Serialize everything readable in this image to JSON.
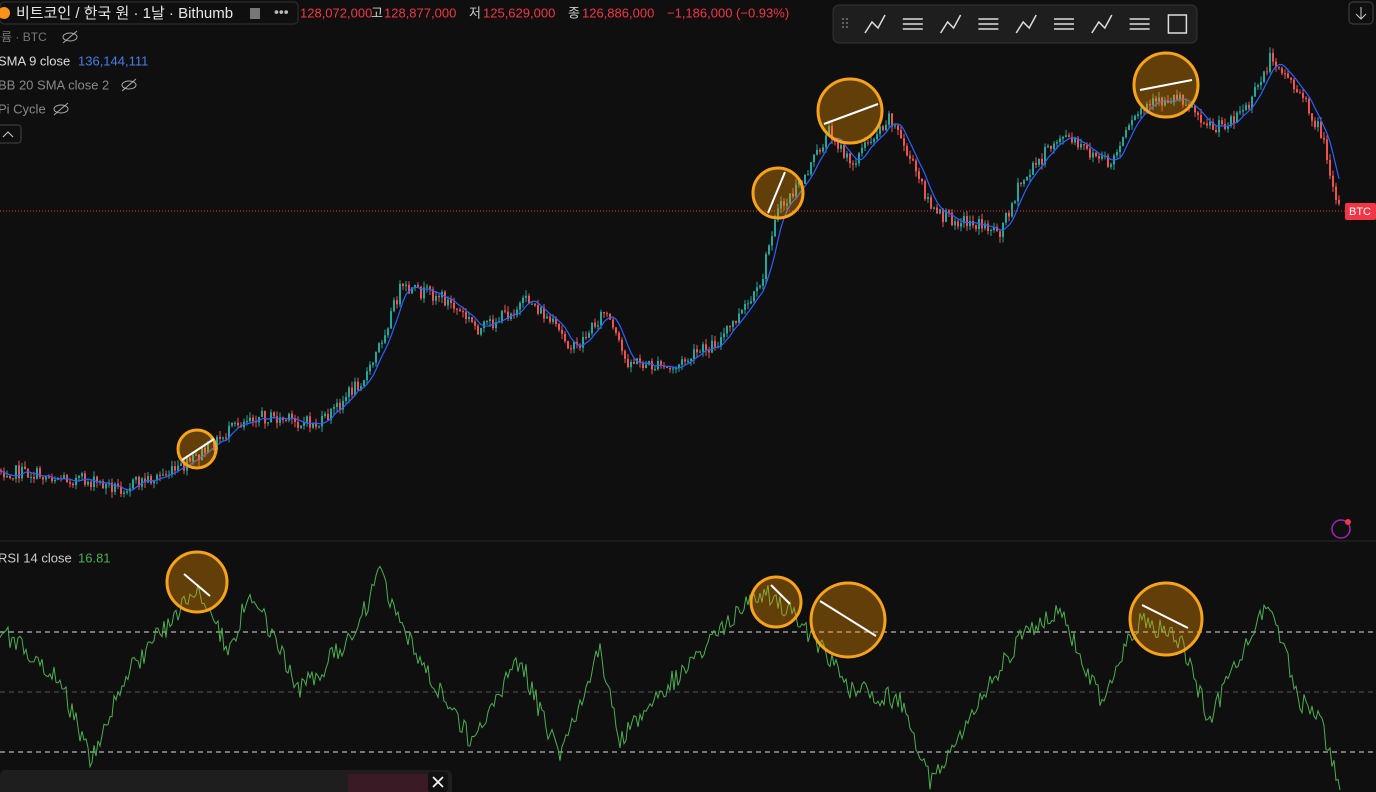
{
  "header": {
    "symbol": "비트코인 / 한국 원 · 1날 · Bithumb",
    "open": "128,072,000",
    "high_label": "고",
    "high": "128,877,000",
    "low_label": "저",
    "low": "125,629,000",
    "close_label": "종",
    "close": "126,886,000",
    "change": "−1,186,000 (−0.93%)"
  },
  "indicators": {
    "volume": "볼륨 · BTC",
    "sma": "SMA 9 close",
    "sma_value": "136,144,111",
    "bb": "BB 20 SMA close 2",
    "pi": "Pi Cycle",
    "rsi": "RSI 14 close",
    "rsi_value": "16.81"
  },
  "price_label": "BTC"
}
